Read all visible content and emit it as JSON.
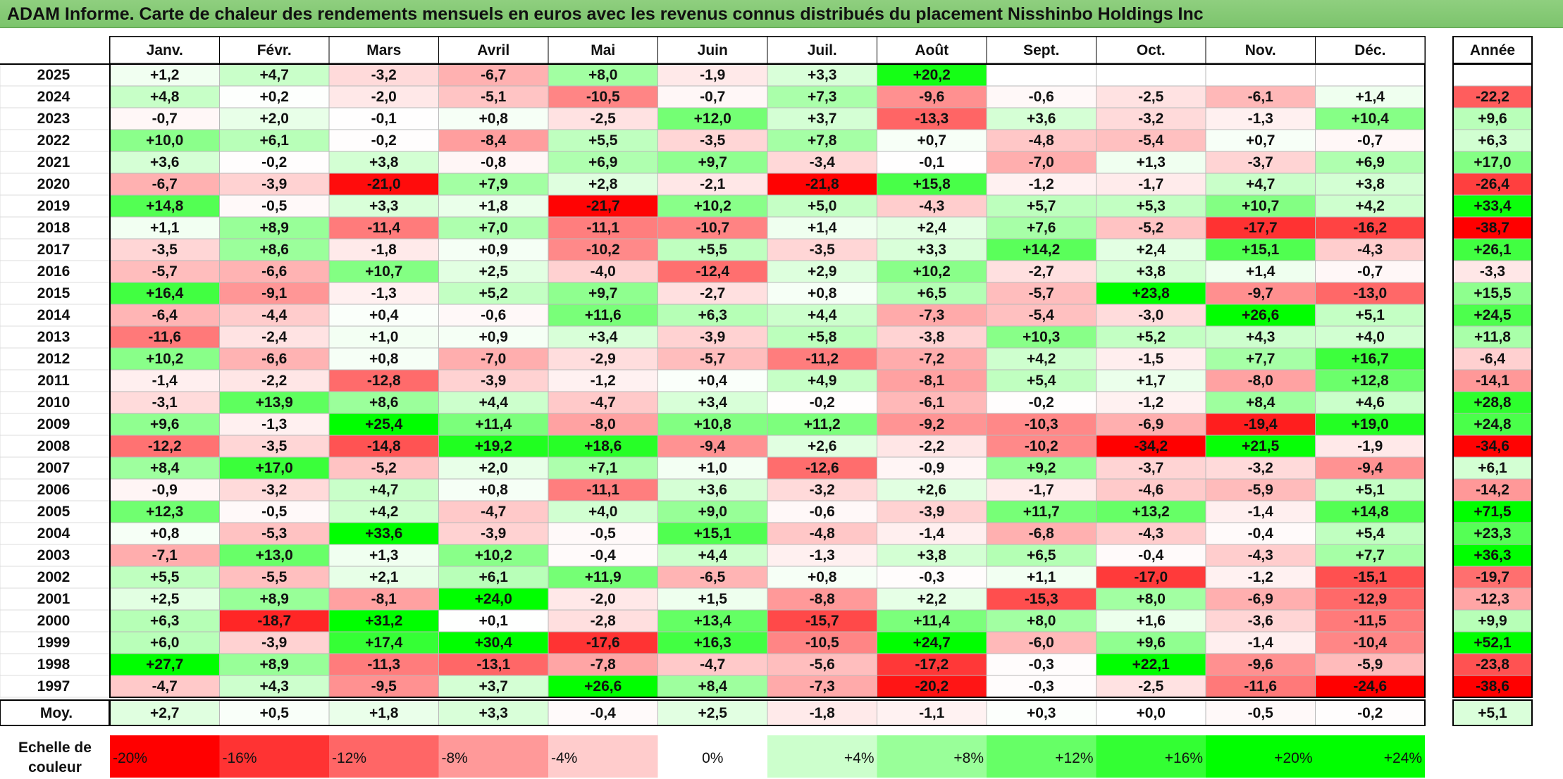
{
  "title": "ADAM Informe. Carte de chaleur des rendements mensuels en euros avec les revenus connus distribués du placement Nisshinbo Holdings Inc",
  "chart_data": {
    "type": "heatmap",
    "title": "ADAM Informe. Carte de chaleur des rendements mensuels en euros avec les revenus connus distribués du placement Nisshinbo Holdings Inc",
    "columns": [
      "Janv.",
      "Févr.",
      "Mars",
      "Avril",
      "Mai",
      "Juin",
      "Juil.",
      "Août",
      "Sept.",
      "Oct.",
      "Nov.",
      "Déc."
    ],
    "year_header": "Année",
    "rows": [
      {
        "label": "2025",
        "values": [
          "+1,2",
          "+4,7",
          "-3,2",
          "-6,7",
          "+8,0",
          "-1,9",
          "+3,3",
          "+20,2",
          "",
          "",
          "",
          ""
        ],
        "year": ""
      },
      {
        "label": "2024",
        "values": [
          "+4,8",
          "+0,2",
          "-2,0",
          "-5,1",
          "-10,5",
          "-0,7",
          "+7,3",
          "-9,6",
          "-0,6",
          "-2,5",
          "-6,1",
          "+1,4"
        ],
        "year": "-22,2"
      },
      {
        "label": "2023",
        "values": [
          "-0,7",
          "+2,0",
          "-0,1",
          "+0,8",
          "-2,5",
          "+12,0",
          "+3,7",
          "-13,3",
          "+3,6",
          "-3,2",
          "-1,3",
          "+10,4"
        ],
        "year": "+9,6"
      },
      {
        "label": "2022",
        "values": [
          "+10,0",
          "+6,1",
          "-0,2",
          "-8,4",
          "+5,5",
          "-3,5",
          "+7,8",
          "+0,7",
          "-4,8",
          "-5,4",
          "+0,7",
          "-0,7"
        ],
        "year": "+6,3"
      },
      {
        "label": "2021",
        "values": [
          "+3,6",
          "-0,2",
          "+3,8",
          "-0,8",
          "+6,9",
          "+9,7",
          "-3,4",
          "-0,1",
          "-7,0",
          "+1,3",
          "-3,7",
          "+6,9"
        ],
        "year": "+17,0"
      },
      {
        "label": "2020",
        "values": [
          "-6,7",
          "-3,9",
          "-21,0",
          "+7,9",
          "+2,8",
          "-2,1",
          "-21,8",
          "+15,8",
          "-1,2",
          "-1,7",
          "+4,7",
          "+3,8"
        ],
        "year": "-26,4"
      },
      {
        "label": "2019",
        "values": [
          "+14,8",
          "-0,5",
          "+3,3",
          "+1,8",
          "-21,7",
          "+10,2",
          "+5,0",
          "-4,3",
          "+5,7",
          "+5,3",
          "+10,7",
          "+4,2"
        ],
        "year": "+33,4"
      },
      {
        "label": "2018",
        "values": [
          "+1,1",
          "+8,9",
          "-11,4",
          "+7,0",
          "-11,1",
          "-10,7",
          "+1,4",
          "+2,4",
          "+7,6",
          "-5,2",
          "-17,7",
          "-16,2"
        ],
        "year": "-38,7"
      },
      {
        "label": "2017",
        "values": [
          "-3,5",
          "+8,6",
          "-1,8",
          "+0,9",
          "-10,2",
          "+5,5",
          "-3,5",
          "+3,3",
          "+14,2",
          "+2,4",
          "+15,1",
          "-4,3"
        ],
        "year": "+26,1"
      },
      {
        "label": "2016",
        "values": [
          "-5,7",
          "-6,6",
          "+10,7",
          "+2,5",
          "-4,0",
          "-12,4",
          "+2,9",
          "+10,2",
          "-2,7",
          "+3,8",
          "+1,4",
          "-0,7"
        ],
        "year": "-3,3"
      },
      {
        "label": "2015",
        "values": [
          "+16,4",
          "-9,1",
          "-1,3",
          "+5,2",
          "+9,7",
          "-2,7",
          "+0,8",
          "+6,5",
          "-5,7",
          "+23,8",
          "-9,7",
          "-13,0"
        ],
        "year": "+15,5"
      },
      {
        "label": "2014",
        "values": [
          "-6,4",
          "-4,4",
          "+0,4",
          "-0,6",
          "+11,6",
          "+6,3",
          "+4,4",
          "-7,3",
          "-5,4",
          "-3,0",
          "+26,6",
          "+5,1"
        ],
        "year": "+24,5"
      },
      {
        "label": "2013",
        "values": [
          "-11,6",
          "-2,4",
          "+1,0",
          "+0,9",
          "+3,4",
          "-3,9",
          "+5,8",
          "-3,8",
          "+10,3",
          "+5,2",
          "+4,3",
          "+4,0"
        ],
        "year": "+11,8"
      },
      {
        "label": "2012",
        "values": [
          "+10,2",
          "-6,6",
          "+0,8",
          "-7,0",
          "-2,9",
          "-5,7",
          "-11,2",
          "-7,2",
          "+4,2",
          "-1,5",
          "+7,7",
          "+16,7"
        ],
        "year": "-6,4"
      },
      {
        "label": "2011",
        "values": [
          "-1,4",
          "-2,2",
          "-12,8",
          "-3,9",
          "-1,2",
          "+0,4",
          "+4,9",
          "-8,1",
          "+5,4",
          "+1,7",
          "-8,0",
          "+12,8"
        ],
        "year": "-14,1"
      },
      {
        "label": "2010",
        "values": [
          "-3,1",
          "+13,9",
          "+8,6",
          "+4,4",
          "-4,7",
          "+3,4",
          "-0,2",
          "-6,1",
          "-0,2",
          "-1,2",
          "+8,4",
          "+4,6"
        ],
        "year": "+28,8"
      },
      {
        "label": "2009",
        "values": [
          "+9,6",
          "-1,3",
          "+25,4",
          "+11,4",
          "-8,0",
          "+10,8",
          "+11,2",
          "-9,2",
          "-10,3",
          "-6,9",
          "-19,4",
          "+19,0"
        ],
        "year": "+24,8"
      },
      {
        "label": "2008",
        "values": [
          "-12,2",
          "-3,5",
          "-14,8",
          "+19,2",
          "+18,6",
          "-9,4",
          "+2,6",
          "-2,2",
          "-10,2",
          "-34,2",
          "+21,5",
          "-1,9"
        ],
        "year": "-34,6"
      },
      {
        "label": "2007",
        "values": [
          "+8,4",
          "+17,0",
          "-5,2",
          "+2,0",
          "+7,1",
          "+1,0",
          "-12,6",
          "-0,9",
          "+9,2",
          "-3,7",
          "-3,2",
          "-9,4"
        ],
        "year": "+6,1"
      },
      {
        "label": "2006",
        "values": [
          "-0,9",
          "-3,2",
          "+4,7",
          "+0,8",
          "-11,1",
          "+3,6",
          "-3,2",
          "+2,6",
          "-1,7",
          "-4,6",
          "-5,9",
          "+5,1"
        ],
        "year": "-14,2"
      },
      {
        "label": "2005",
        "values": [
          "+12,3",
          "-0,5",
          "+4,2",
          "-4,7",
          "+4,0",
          "+9,0",
          "-0,6",
          "-3,9",
          "+11,7",
          "+13,2",
          "-1,4",
          "+14,8"
        ],
        "year": "+71,5"
      },
      {
        "label": "2004",
        "values": [
          "+0,8",
          "-5,3",
          "+33,6",
          "-3,9",
          "-0,5",
          "+15,1",
          "-4,8",
          "-1,4",
          "-6,8",
          "-4,3",
          "-0,4",
          "+5,4"
        ],
        "year": "+23,3"
      },
      {
        "label": "2003",
        "values": [
          "-7,1",
          "+13,0",
          "+1,3",
          "+10,2",
          "-0,4",
          "+4,4",
          "-1,3",
          "+3,8",
          "+6,5",
          "-0,4",
          "-4,3",
          "+7,7"
        ],
        "year": "+36,3"
      },
      {
        "label": "2002",
        "values": [
          "+5,5",
          "-5,5",
          "+2,1",
          "+6,1",
          "+11,9",
          "-6,5",
          "+0,8",
          "-0,3",
          "+1,1",
          "-17,0",
          "-1,2",
          "-15,1"
        ],
        "year": "-19,7"
      },
      {
        "label": "2001",
        "values": [
          "+2,5",
          "+8,9",
          "-8,1",
          "+24,0",
          "-2,0",
          "+1,5",
          "-8,8",
          "+2,2",
          "-15,3",
          "+8,0",
          "-6,9",
          "-12,9"
        ],
        "year": "-12,3"
      },
      {
        "label": "2000",
        "values": [
          "+6,3",
          "-18,7",
          "+31,2",
          "+0,1",
          "-2,8",
          "+13,4",
          "-15,7",
          "+11,4",
          "+8,0",
          "+1,6",
          "-3,6",
          "-11,5"
        ],
        "year": "+9,9"
      },
      {
        "label": "1999",
        "values": [
          "+6,0",
          "-3,9",
          "+17,4",
          "+30,4",
          "-17,6",
          "+16,3",
          "-10,5",
          "+24,7",
          "-6,0",
          "+9,6",
          "-1,4",
          "-10,4"
        ],
        "year": "+52,1"
      },
      {
        "label": "1998",
        "values": [
          "+27,7",
          "+8,9",
          "-11,3",
          "-13,1",
          "-7,8",
          "-4,7",
          "-5,6",
          "-17,2",
          "-0,3",
          "+22,1",
          "-9,6",
          "-5,9"
        ],
        "year": "-23,8"
      },
      {
        "label": "1997",
        "values": [
          "-4,7",
          "+4,3",
          "-9,5",
          "+3,7",
          "+26,6",
          "+8,4",
          "-7,3",
          "-20,2",
          "-0,3",
          "-2,5",
          "-11,6",
          "-24,6"
        ],
        "year": "-38,6"
      }
    ],
    "average": {
      "label": "Moy.",
      "values": [
        "+2,7",
        "+0,5",
        "+1,8",
        "+3,3",
        "-0,4",
        "+2,5",
        "-1,8",
        "-1,1",
        "+0,3",
        "+0,0",
        "-0,5",
        "-0,2"
      ],
      "year": "+5,1"
    },
    "legend": {
      "label_line1": "Echelle de",
      "label_line2": "couleur",
      "steps": [
        "-20%",
        "-16%",
        "-12%",
        "-8%",
        "-4%",
        "0%",
        "+4%",
        "+8%",
        "+12%",
        "+16%",
        "+20%",
        "+24%"
      ],
      "step_values": [
        -20,
        -16,
        -12,
        -8,
        -4,
        0,
        4,
        8,
        12,
        16,
        20,
        24
      ]
    },
    "colors": {
      "negative_max": "#ff0000",
      "neutral": "#ffffff",
      "positive_max": "#00ff00",
      "title_bar": "#7cc46c"
    }
  }
}
